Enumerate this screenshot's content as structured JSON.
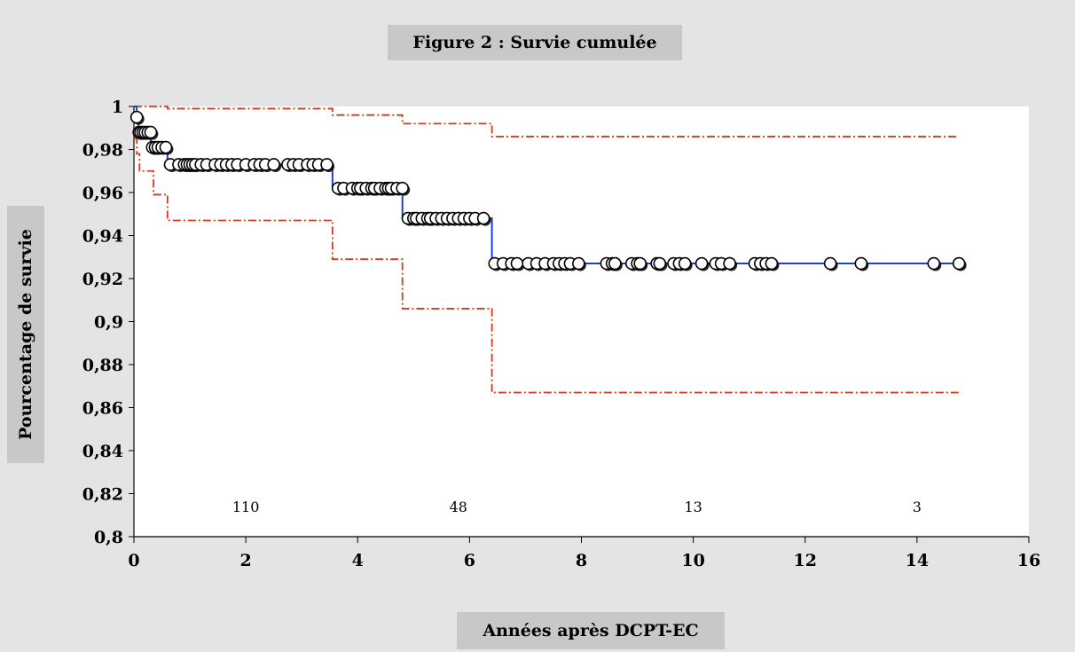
{
  "chart_data": {
    "type": "line",
    "title": "Figure 2 : Survie cumulée",
    "xlabel": "Années après DCPT-EC",
    "ylabel": "Pourcentage de survie",
    "xlim": [
      0,
      16
    ],
    "ylim": [
      0.8,
      1
    ],
    "x_ticks": [
      0,
      2,
      4,
      6,
      8,
      10,
      12,
      14,
      16
    ],
    "x_tick_labels": [
      "0",
      "2",
      "4",
      "6",
      "8",
      "10",
      "12",
      "14",
      "16"
    ],
    "y_ticks": [
      0.8,
      0.82,
      0.84,
      0.86,
      0.88,
      0.9,
      0.92,
      0.94,
      0.96,
      0.98,
      1
    ],
    "y_tick_labels": [
      "0,8",
      "0,82",
      "0,84",
      "0,86",
      "0,88",
      "0,9",
      "0,92",
      "0,94",
      "0,96",
      "0,98",
      "1"
    ],
    "grid": false,
    "colors": {
      "survival": "#1f3fd6",
      "ci": "#d63a1a",
      "marker_fill": "#ffffff",
      "marker_stroke": "#000000"
    },
    "series": [
      {
        "style": "step",
        "points": [
          [
            0,
            1
          ],
          [
            0.05,
            0.995
          ],
          [
            0.08,
            0.988
          ],
          [
            0.3,
            0.981
          ],
          [
            0.6,
            0.973
          ],
          [
            3.55,
            0.962
          ],
          [
            4.8,
            0.948
          ],
          [
            6.4,
            0.927
          ],
          [
            14.75,
            0.927
          ]
        ]
      },
      {
        "style": "step-dashed",
        "points": [
          [
            0,
            1
          ],
          [
            0.6,
            0.999
          ],
          [
            3.55,
            0.996
          ],
          [
            4.8,
            0.992
          ],
          [
            6.4,
            0.986
          ],
          [
            14.75,
            0.986
          ]
        ]
      },
      {
        "style": "step-dashed",
        "points": [
          [
            0,
            0.985
          ],
          [
            0.05,
            0.978
          ],
          [
            0.1,
            0.97
          ],
          [
            0.35,
            0.959
          ],
          [
            0.6,
            0.947
          ],
          [
            3.55,
            0.929
          ],
          [
            4.8,
            0.906
          ],
          [
            6.4,
            0.867
          ],
          [
            14.75,
            0.867
          ]
        ]
      }
    ],
    "censored": [
      {
        "y": 0.995,
        "x": [
          0.05
        ]
      },
      {
        "y": 0.988,
        "x": [
          0.09,
          0.12,
          0.16,
          0.2,
          0.25,
          0.3
        ]
      },
      {
        "y": 0.981,
        "x": [
          0.33,
          0.38,
          0.43,
          0.5,
          0.57
        ]
      },
      {
        "y": 0.973,
        "x": [
          0.65,
          0.8,
          0.9,
          0.95,
          1.0,
          1.05,
          1.1,
          1.2,
          1.3,
          1.45,
          1.55,
          1.65,
          1.75,
          1.85,
          2.0,
          2.15,
          2.25,
          2.35,
          2.5,
          2.75,
          2.85,
          2.95,
          3.1,
          3.2,
          3.3,
          3.45
        ]
      },
      {
        "y": 0.962,
        "x": [
          3.65,
          3.75,
          3.9,
          4.0,
          4.05,
          4.15,
          4.25,
          4.3,
          4.4,
          4.5,
          4.55,
          4.6,
          4.7,
          4.8
        ]
      },
      {
        "y": 0.948,
        "x": [
          4.9,
          5.0,
          5.05,
          5.15,
          5.25,
          5.3,
          5.4,
          5.5,
          5.6,
          5.7,
          5.8,
          5.9,
          6.0,
          6.1,
          6.25
        ]
      },
      {
        "y": 0.927,
        "x": [
          6.45,
          6.6,
          6.75,
          6.85,
          7.05,
          7.2,
          7.35,
          7.5,
          7.6,
          7.7,
          7.8,
          7.95,
          8.45,
          8.55,
          8.6,
          8.9,
          9.0,
          9.05,
          9.35,
          9.4,
          9.65,
          9.75,
          9.85,
          10.15,
          10.4,
          10.5,
          10.65,
          11.1,
          11.2,
          11.3,
          11.4,
          12.45,
          13.0,
          14.3,
          14.75
        ]
      }
    ],
    "annotations": [
      {
        "text": "110",
        "x": 2,
        "y": 0.81
      },
      {
        "text": "48",
        "x": 5.8,
        "y": 0.81
      },
      {
        "text": "13",
        "x": 10,
        "y": 0.81
      },
      {
        "text": "3",
        "x": 14,
        "y": 0.81
      }
    ]
  }
}
